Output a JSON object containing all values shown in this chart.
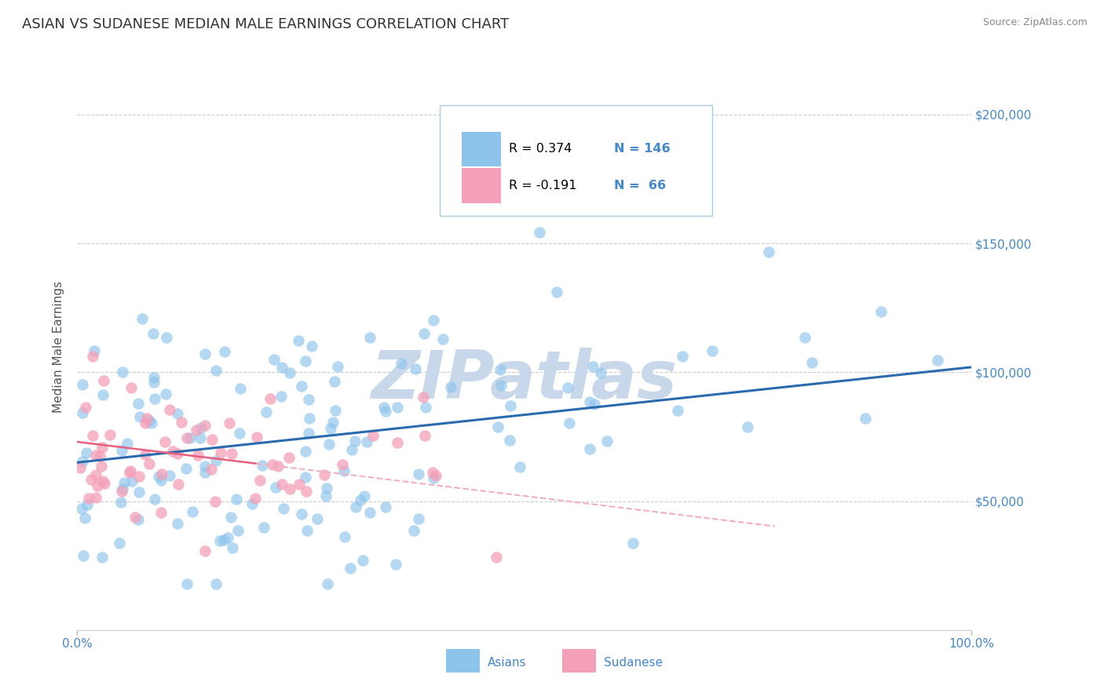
{
  "title": "ASIAN VS SUDANESE MEDIAN MALE EARNINGS CORRELATION CHART",
  "source": "Source: ZipAtlas.com",
  "ylabel": "Median Male Earnings",
  "xlim": [
    0,
    1.0
  ],
  "ylim": [
    0,
    220000
  ],
  "ytick_positions": [
    0,
    50000,
    100000,
    150000,
    200000
  ],
  "ytick_labels": [
    "",
    "$50,000",
    "$100,000",
    "$150,000",
    "$200,000"
  ],
  "asian_color": "#8DC4EC",
  "sudanese_color": "#F4A0B8",
  "asian_line_color": "#2A6BAD",
  "sudanese_line_solid_color": "#E86080",
  "sudanese_line_dash_color": "#F0B0C0",
  "watermark": "ZIPatlas",
  "watermark_color": "#C8D8EA",
  "legend_r_asian": "R = 0.374",
  "legend_n_asian": "N = 146",
  "legend_r_sudanese": "R = -0.191",
  "legend_n_sudanese": "N =  66",
  "r_asian": 0.374,
  "n_asian": 146,
  "r_sudanese": -0.191,
  "n_sudanese": 66,
  "asian_intercept": 65000,
  "asian_slope": 37000,
  "sudanese_intercept": 73000,
  "sudanese_slope": -42000,
  "background_color": "#FFFFFF",
  "grid_color": "#CCCCCC",
  "title_color": "#333333",
  "axis_label_color": "#555555",
  "tick_label_color": "#4488CC",
  "legend_text_color": "#4488CC"
}
